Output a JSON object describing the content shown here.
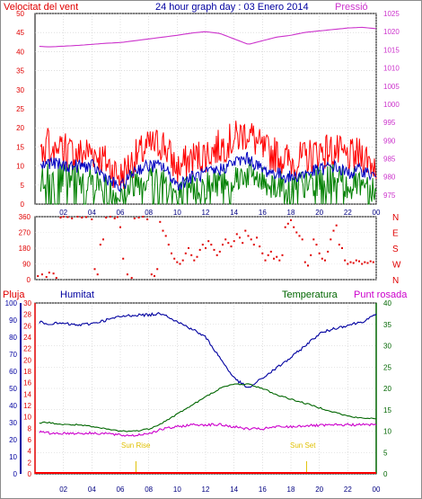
{
  "header": {
    "left_title": "Velocitat del vent",
    "center_title": "24 hour graph day : 03 Enero 2014",
    "right_title": "Pressió"
  },
  "labels": {
    "pluja": "Pluja",
    "humitat": "Humitat",
    "temperatura": "Temperatura",
    "punt_rosada": "Punt rosada",
    "sun_rise": "Sun Rise",
    "sun_set": "Sun Set"
  },
  "colors": {
    "wind_gust": "#ff0000",
    "wind_avg": "#0000c0",
    "wind_low": "#008000",
    "pressure": "#cc33cc",
    "direction": "#e00000",
    "humidity": "#0000a0",
    "temperature": "#006600",
    "dewpoint": "#cc00cc",
    "rain": "#ff0000",
    "sun": "#e0c000"
  },
  "chart_data": [
    {
      "type": "line",
      "title": "24 hour graph day : 03 Enero 2014",
      "ylabel": "Velocitat del vent",
      "y2label": "Pressió",
      "x_ticks": [
        "02",
        "04",
        "06",
        "08",
        "10",
        "12",
        "14",
        "16",
        "18",
        "20",
        "22",
        "00"
      ],
      "ylim": [
        0,
        50
      ],
      "y_ticks": [
        0,
        5,
        10,
        15,
        20,
        25,
        30,
        35,
        40,
        45,
        50
      ],
      "y2lim": [
        972.5,
        1025
      ],
      "y2_ticks": [
        975,
        980,
        985,
        990,
        995,
        1000,
        1005,
        1010,
        1015,
        1020,
        1025
      ],
      "x_hours": [
        0,
        1,
        2,
        3,
        4,
        5,
        6,
        7,
        8,
        9,
        10,
        11,
        12,
        13,
        14,
        15,
        16,
        17,
        18,
        19,
        20,
        21,
        22,
        23,
        24
      ],
      "series": [
        {
          "name": "Gust",
          "values": [
            14,
            16,
            14,
            13,
            14,
            11,
            7,
            12,
            15,
            16,
            9,
            12,
            13,
            15,
            17,
            19,
            14,
            13,
            11,
            12,
            14,
            14,
            12,
            13,
            10
          ]
        },
        {
          "name": "Average",
          "values": [
            9,
            11,
            10,
            10,
            10,
            7,
            4,
            9,
            10,
            10,
            5,
            7,
            8,
            9,
            11,
            12,
            9,
            8,
            7,
            8,
            9,
            10,
            8,
            9,
            7
          ]
        },
        {
          "name": "Low",
          "values": [
            6,
            7,
            7,
            7,
            6,
            4,
            2,
            6,
            7,
            7,
            2,
            4,
            5,
            6,
            7,
            8,
            6,
            5,
            5,
            5,
            6,
            7,
            5,
            6,
            4
          ]
        },
        {
          "name": "Pressió",
          "values": [
            1016,
            1015.8,
            1016,
            1016.2,
            1016.5,
            1016.8,
            1017,
            1017.5,
            1018,
            1018.5,
            1019,
            1019.6,
            1020,
            1019.5,
            1018,
            1016.5,
            1017.5,
            1018.5,
            1019,
            1019.8,
            1020.2,
            1020.6,
            1021,
            1021.2,
            1020.8
          ]
        }
      ]
    },
    {
      "type": "scatter",
      "title": "",
      "ylabel": "",
      "x_ticks": [],
      "ylim": [
        0,
        360
      ],
      "y_ticks": [
        0,
        90,
        180,
        270,
        360
      ],
      "y_right_labels": [
        "N",
        "W",
        "S",
        "E",
        "N"
      ],
      "points": [
        [
          0.2,
          20
        ],
        [
          0.5,
          30
        ],
        [
          0.8,
          15
        ],
        [
          1.0,
          40
        ],
        [
          1.3,
          35
        ],
        [
          1.5,
          10
        ],
        [
          1.8,
          355
        ],
        [
          2.0,
          360
        ],
        [
          2.3,
          358
        ],
        [
          2.6,
          350
        ],
        [
          3.0,
          360
        ],
        [
          3.3,
          355
        ],
        [
          3.6,
          358
        ],
        [
          4.0,
          345
        ],
        [
          4.2,
          60
        ],
        [
          4.4,
          30
        ],
        [
          4.6,
          200
        ],
        [
          4.8,
          230
        ],
        [
          5.0,
          355
        ],
        [
          5.3,
          360
        ],
        [
          5.6,
          350
        ],
        [
          5.8,
          358
        ],
        [
          6.0,
          300
        ],
        [
          6.2,
          120
        ],
        [
          6.5,
          30
        ],
        [
          6.8,
          10
        ],
        [
          7.0,
          350
        ],
        [
          7.3,
          355
        ],
        [
          7.6,
          360
        ],
        [
          7.9,
          345
        ],
        [
          8.2,
          30
        ],
        [
          8.4,
          20
        ],
        [
          8.6,
          60
        ],
        [
          8.8,
          330
        ],
        [
          9.0,
          280
        ],
        [
          9.2,
          250
        ],
        [
          9.4,
          200
        ],
        [
          9.6,
          150
        ],
        [
          9.8,
          120
        ],
        [
          10.0,
          100
        ],
        [
          10.2,
          90
        ],
        [
          10.4,
          110
        ],
        [
          10.6,
          150
        ],
        [
          10.8,
          180
        ],
        [
          11.0,
          140
        ],
        [
          11.2,
          110
        ],
        [
          11.4,
          130
        ],
        [
          11.6,
          170
        ],
        [
          11.8,
          200
        ],
        [
          12.0,
          180
        ],
        [
          12.2,
          220
        ],
        [
          12.4,
          200
        ],
        [
          12.6,
          170
        ],
        [
          12.8,
          140
        ],
        [
          13.0,
          160
        ],
        [
          13.2,
          200
        ],
        [
          13.4,
          230
        ],
        [
          13.6,
          210
        ],
        [
          13.8,
          190
        ],
        [
          14.0,
          220
        ],
        [
          14.2,
          260
        ],
        [
          14.4,
          240
        ],
        [
          14.6,
          210
        ],
        [
          14.8,
          280
        ],
        [
          15.0,
          250
        ],
        [
          15.2,
          230
        ],
        [
          15.4,
          200
        ],
        [
          15.6,
          240
        ],
        [
          15.8,
          190
        ],
        [
          16.0,
          150
        ],
        [
          16.2,
          110
        ],
        [
          16.4,
          140
        ],
        [
          16.6,
          160
        ],
        [
          16.8,
          120
        ],
        [
          17.0,
          130
        ],
        [
          17.2,
          110
        ],
        [
          17.4,
          140
        ],
        [
          17.6,
          300
        ],
        [
          17.8,
          320
        ],
        [
          18.0,
          340
        ],
        [
          18.2,
          300
        ],
        [
          18.4,
          270
        ],
        [
          18.6,
          250
        ],
        [
          18.8,
          230
        ],
        [
          19.0,
          100
        ],
        [
          19.2,
          80
        ],
        [
          19.4,
          140
        ],
        [
          19.6,
          230
        ],
        [
          19.8,
          200
        ],
        [
          20.0,
          150
        ],
        [
          20.2,
          120
        ],
        [
          20.4,
          110
        ],
        [
          20.6,
          160
        ],
        [
          20.8,
          230
        ],
        [
          21.0,
          280
        ],
        [
          21.2,
          310
        ],
        [
          21.4,
          200
        ],
        [
          21.6,
          180
        ],
        [
          21.8,
          110
        ],
        [
          22.0,
          90
        ],
        [
          22.2,
          100
        ],
        [
          22.4,
          95
        ],
        [
          22.6,
          110
        ],
        [
          22.8,
          105
        ],
        [
          23.0,
          90
        ],
        [
          23.2,
          100
        ],
        [
          23.4,
          95
        ],
        [
          23.6,
          105
        ],
        [
          23.8,
          100
        ]
      ]
    },
    {
      "type": "line",
      "title": "",
      "x_ticks": [
        "02",
        "04",
        "06",
        "08",
        "10",
        "12",
        "14",
        "16",
        "18",
        "20",
        "22",
        "00"
      ],
      "humidity_axis": {
        "label": "Humitat",
        "ylim": [
          0,
          100
        ],
        "ticks": [
          0,
          10,
          20,
          30,
          40,
          50,
          60,
          70,
          80,
          90,
          100
        ]
      },
      "rain_axis": {
        "label": "Pluja",
        "ylim": [
          0,
          30
        ],
        "ticks": [
          0,
          2,
          4,
          6,
          8,
          10,
          12,
          14,
          16,
          18,
          20,
          22,
          24,
          26,
          28,
          30
        ]
      },
      "temp_axis": {
        "label": "Temperatura",
        "ylim": [
          0,
          40
        ],
        "ticks": [
          0,
          5,
          10,
          15,
          20,
          25,
          30,
          35,
          40
        ]
      },
      "x_hours": [
        0,
        1,
        2,
        3,
        4,
        5,
        6,
        7,
        8,
        9,
        10,
        11,
        12,
        13,
        14,
        15,
        16,
        17,
        18,
        19,
        20,
        21,
        22,
        23,
        24
      ],
      "sun_rise_hour": 7.1,
      "sun_set_hour": 19.1,
      "series": [
        {
          "name": "Humitat",
          "axis": "humidity",
          "values": [
            89,
            88,
            88,
            87,
            88,
            90,
            92,
            93,
            93,
            94,
            89,
            85,
            80,
            68,
            56,
            50,
            56,
            62,
            68,
            75,
            82,
            85,
            87,
            89,
            93
          ]
        },
        {
          "name": "Temperatura",
          "axis": "temperature",
          "values": [
            12,
            12,
            11.5,
            11.5,
            11,
            10.5,
            10,
            10,
            10.5,
            12,
            14,
            16,
            18,
            20,
            21,
            21,
            20,
            18.5,
            17.5,
            16.5,
            15.5,
            14.5,
            13.5,
            13,
            13
          ]
        },
        {
          "name": "Punt rosada",
          "axis": "temperature",
          "values": [
            10,
            9.5,
            9.5,
            9.5,
            9.5,
            9.5,
            9,
            9,
            9.5,
            10.5,
            11,
            11.5,
            11.5,
            11.5,
            11,
            10.5,
            10.5,
            11,
            11,
            11.3,
            11.3,
            11.4,
            11.5,
            11.5,
            11.5
          ]
        },
        {
          "name": "Pluja",
          "axis": "rain",
          "values": [
            0,
            0,
            0,
            0,
            0,
            0,
            0,
            0,
            0,
            0,
            0,
            0,
            0,
            0,
            0,
            0,
            0,
            0,
            0,
            0,
            0,
            0,
            0,
            0,
            0
          ]
        }
      ]
    }
  ]
}
